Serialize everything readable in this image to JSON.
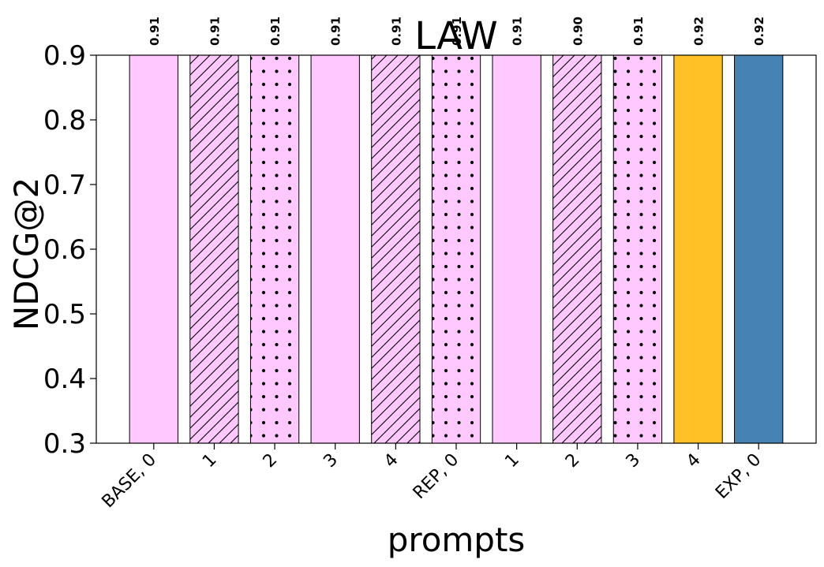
{
  "chart_data": {
    "type": "bar",
    "title": "LAW",
    "xlabel": "prompts",
    "ylabel": "NDCG@2",
    "ylim": [
      0.3,
      0.9
    ],
    "yticks": [
      0.3,
      0.4,
      0.5,
      0.6,
      0.7,
      0.8,
      0.9
    ],
    "ytick_labels": [
      "0.3",
      "0.4",
      "0.5",
      "0.6",
      "0.7",
      "0.8",
      "0.9"
    ],
    "categories": [
      "BASE, 0",
      "1",
      "2",
      "3",
      "4",
      "REP, 0",
      "1",
      "2",
      "3",
      "4",
      "EXP, 0"
    ],
    "values": [
      0.91,
      0.91,
      0.91,
      0.91,
      0.91,
      0.91,
      0.91,
      0.9,
      0.91,
      0.92,
      0.92
    ],
    "value_labels": [
      "0.91",
      "0.91",
      "0.91",
      "0.91",
      "0.91",
      "0.91",
      "0.91",
      "0.90",
      "0.91",
      "0.92",
      "0.92"
    ],
    "bar_colors": [
      "#ffc8ff",
      "#ffc8ff",
      "#ffc8ff",
      "#ffc8ff",
      "#ffc8ff",
      "#ffc8ff",
      "#ffc8ff",
      "#ffc8ff",
      "#ffc8ff",
      "#ffc125",
      "#4682b4"
    ],
    "bar_patterns": [
      "none",
      "hatch",
      "dots",
      "none",
      "hatch",
      "dots",
      "none",
      "hatch",
      "dots",
      "none",
      "none"
    ],
    "grid": false,
    "legend": "none"
  }
}
